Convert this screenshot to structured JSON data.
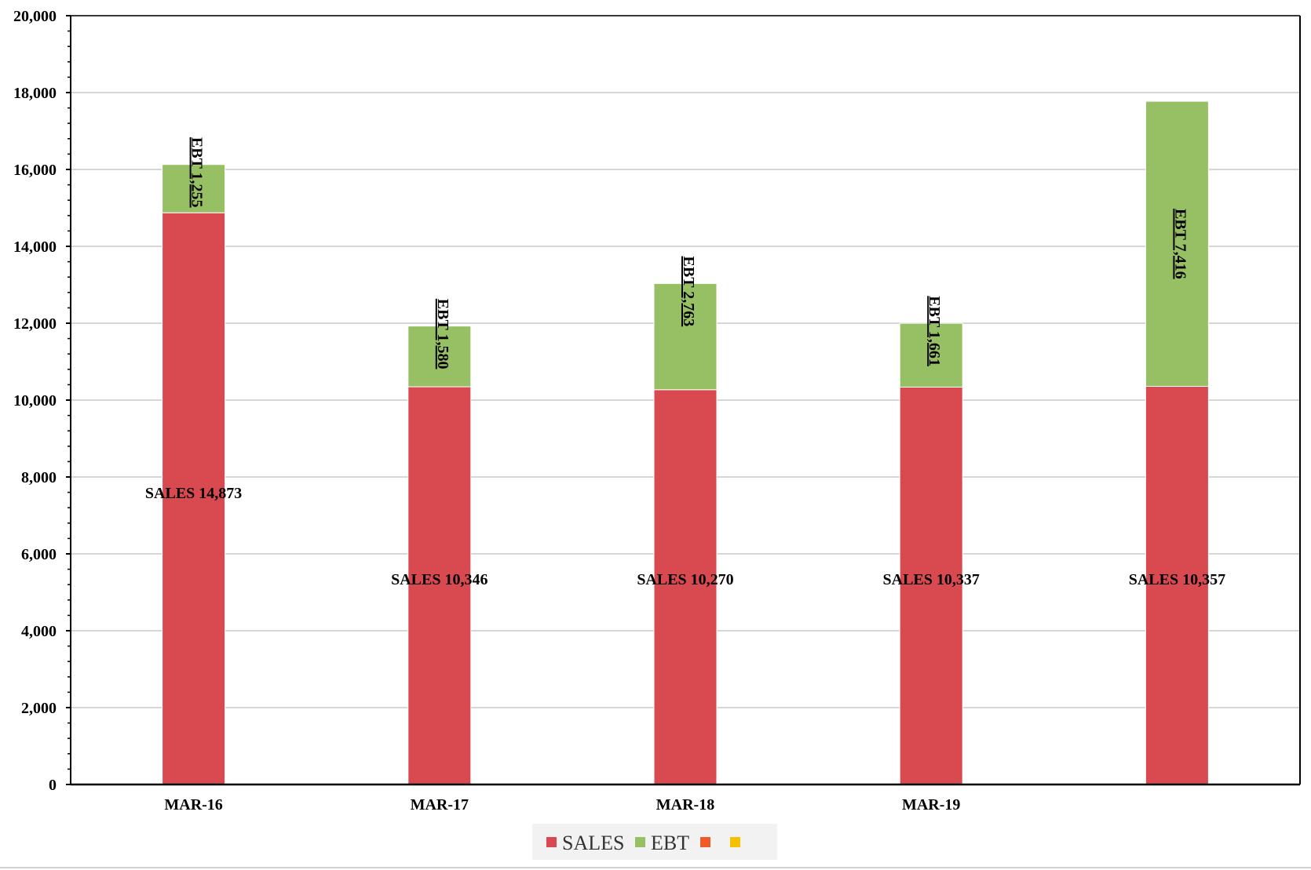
{
  "chart_data": {
    "type": "bar",
    "stacked": true,
    "categories": [
      "MAR-16",
      "MAR-17",
      "MAR-18",
      "MAR-19",
      ""
    ],
    "series": [
      {
        "name": "SALES",
        "color": "#d84a50",
        "values": [
          14873,
          10346,
          10270,
          10337,
          10357
        ],
        "labels": [
          "SALES 14,873",
          "SALES 10,346",
          "SALES 10,270",
          "SALES 10,337",
          "SALES 10,357"
        ]
      },
      {
        "name": "EBT",
        "color": "#97bf63",
        "values": [
          1255,
          1580,
          2763,
          1661,
          7416
        ],
        "labels": [
          "EBT 1,255",
          "EBT 1,580",
          "EBT 2,763",
          "EBT 1,661",
          "EBT 7,416"
        ]
      }
    ],
    "legend_extra": [
      {
        "name": "",
        "color": "#f05a2a"
      },
      {
        "name": "",
        "color": "#f5c000"
      }
    ],
    "ylim": [
      0,
      20000
    ],
    "yticks": [
      0,
      2000,
      4000,
      6000,
      8000,
      10000,
      12000,
      14000,
      16000,
      18000,
      20000
    ],
    "ytick_labels": [
      "0",
      "2,000",
      "4,000",
      "6,000",
      "8,000",
      "10,000",
      "12,000",
      "14,000",
      "16,000",
      "18,000",
      "20,000"
    ],
    "title": "",
    "xlabel": "",
    "ylabel": "",
    "grid": true,
    "legend_position": "bottom"
  }
}
